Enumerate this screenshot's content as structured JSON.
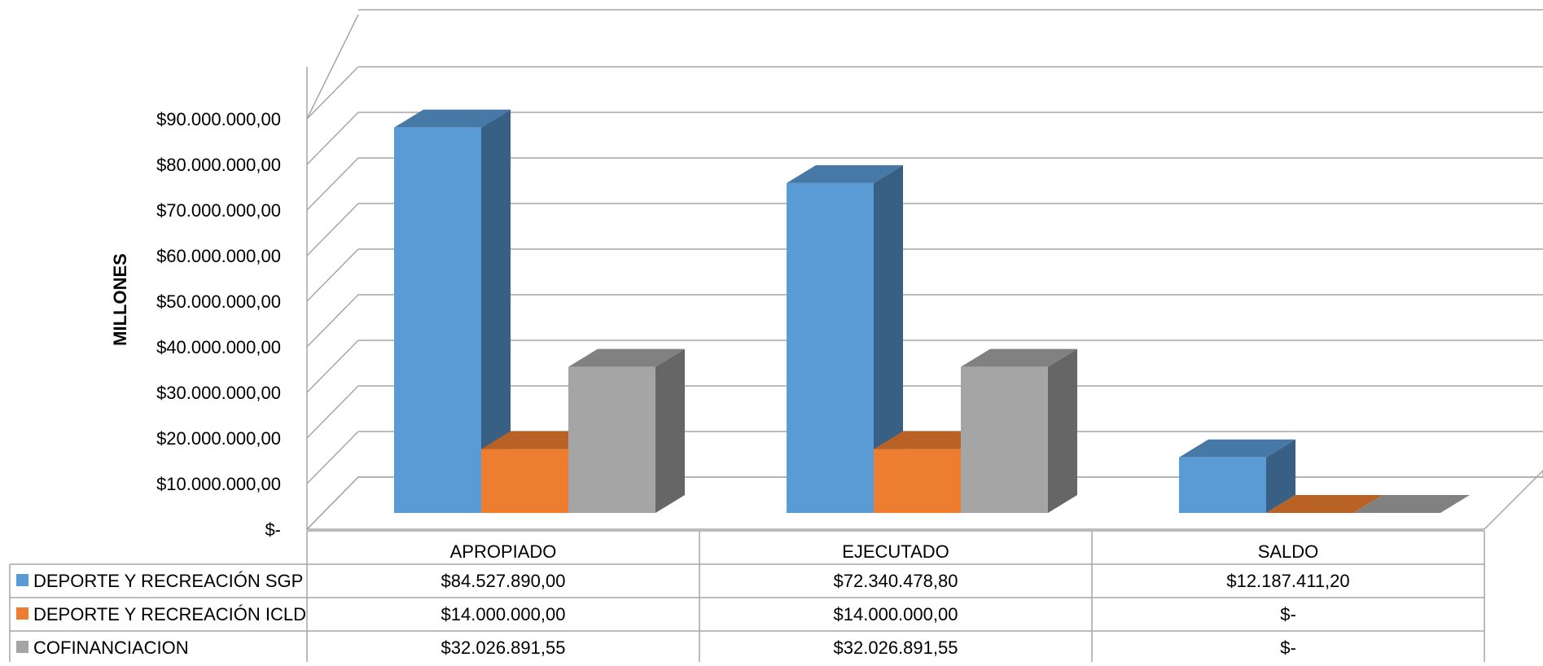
{
  "chart_data": {
    "type": "bar",
    "style": "3d-clustered-column-with-data-table",
    "ylabel": "MILLONES",
    "ylim": [
      0,
      90000000
    ],
    "yticks": [
      0,
      10000000,
      20000000,
      30000000,
      40000000,
      50000000,
      60000000,
      70000000,
      80000000,
      90000000
    ],
    "ytick_labels": [
      "$-",
      "$10.000.000,00",
      "$20.000.000,00",
      "$30.000.000,00",
      "$40.000.000,00",
      "$50.000.000,00",
      "$60.000.000,00",
      "$70.000.000,00",
      "$80.000.000,00",
      "$90.000.000,00"
    ],
    "grid": true,
    "legend": "data-table",
    "categories": [
      "APROPIADO",
      "EJECUTADO",
      "SALDO"
    ],
    "series": [
      {
        "name": "DEPORTE Y RECREACIÓN SGP",
        "color": "#5B9BD5",
        "values": [
          84527890.0,
          72340478.8,
          12187411.2
        ],
        "value_labels": [
          "$84.527.890,00",
          "$72.340.478,80",
          "$12.187.411,20"
        ]
      },
      {
        "name": "DEPORTE Y RECREACIÓN ICLD",
        "color": "#ED7D31",
        "values": [
          14000000.0,
          14000000.0,
          0
        ],
        "value_labels": [
          "$14.000.000,00",
          "$14.000.000,00",
          "$-"
        ]
      },
      {
        "name": "COFINANCIACION",
        "color": "#A5A5A5",
        "values": [
          32026891.55,
          32026891.55,
          0
        ],
        "value_labels": [
          "$32.026.891,55",
          "$32.026.891,55",
          "$-"
        ]
      }
    ]
  }
}
